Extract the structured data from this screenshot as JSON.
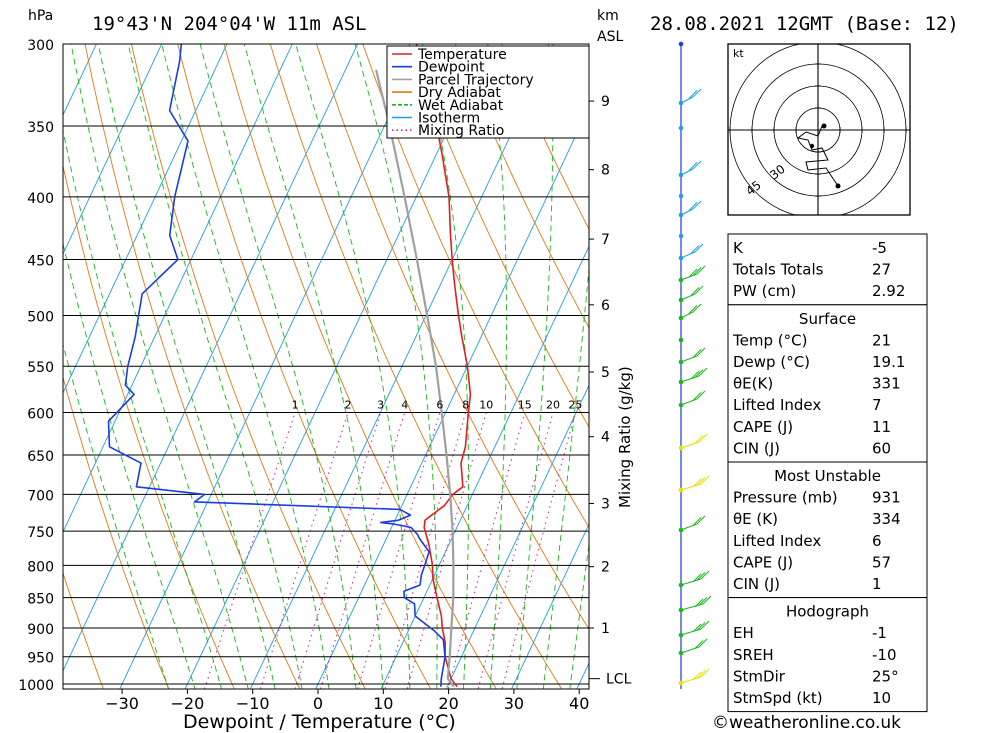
{
  "header": {
    "pressure_unit": "hPa",
    "location": "19°43'N  204°04'W  11m  ASL",
    "height_unit": "km",
    "height_ref": "ASL",
    "datetime": "28.08.2021  12GMT  (Base: 12)"
  },
  "footer": {
    "credit": "©weatheronline.co.uk"
  },
  "chart_data": {
    "type": "line",
    "subtype": "skew-T log-P sounding",
    "xlabel": "Dewpoint / Temperature (°C)",
    "x_ticks": [
      -30,
      -20,
      -10,
      0,
      10,
      20,
      30,
      40
    ],
    "xlim": [
      -40,
      40
    ],
    "ylabel": "hPa",
    "y_scale": "log",
    "y_ticks": [
      300,
      350,
      400,
      450,
      500,
      550,
      600,
      650,
      700,
      750,
      800,
      850,
      900,
      950,
      1000
    ],
    "ylim": [
      1010,
      300
    ],
    "height_axis_label": "km ASL",
    "height_ticks": [
      {
        "km": "1",
        "p": 900
      },
      {
        "km": "2",
        "p": 802
      },
      {
        "km": "3",
        "p": 712
      },
      {
        "km": "4",
        "p": 628
      },
      {
        "km": "5",
        "p": 556
      },
      {
        "km": "6",
        "p": 490
      },
      {
        "km": "7",
        "p": 433
      },
      {
        "km": "8",
        "p": 380
      },
      {
        "km": "9",
        "p": 334
      }
    ],
    "lcl_label": "LCL",
    "lcl_pressure": 990,
    "mixing_ratio_label": "Mixing Ratio (g/kg)",
    "mixing_ratio_ticks": [
      "1",
      "2",
      "3",
      "4",
      "6",
      "8",
      "10",
      "15",
      "20",
      "25"
    ],
    "mixing_ratio_values": [
      1,
      2,
      3,
      4,
      6,
      8,
      10,
      15,
      20,
      25
    ],
    "legend": [
      {
        "name": "Temperature",
        "color": "#e02020",
        "style": "solid"
      },
      {
        "name": "Dewpoint",
        "color": "#1a3de0",
        "style": "solid"
      },
      {
        "name": "Parcel Trajectory",
        "color": "#a0a0a0",
        "style": "solid"
      },
      {
        "name": "Dry Adiabat",
        "color": "#e07a10",
        "style": "solid"
      },
      {
        "name": "Wet Adiabat",
        "color": "#18b818",
        "style": "dashed"
      },
      {
        "name": "Isotherm",
        "color": "#1ea0e8",
        "style": "solid"
      },
      {
        "name": "Mixing Ratio",
        "color": "#d0208a",
        "style": "dotted"
      }
    ],
    "series": [
      {
        "name": "Temperature",
        "points": [
          [
            1005,
            21.5
          ],
          [
            990,
            20
          ],
          [
            950,
            17.5
          ],
          [
            925,
            16.5
          ],
          [
            900,
            15
          ],
          [
            880,
            14
          ],
          [
            850,
            12
          ],
          [
            820,
            10
          ],
          [
            800,
            9
          ],
          [
            770,
            7
          ],
          [
            745,
            5
          ],
          [
            735,
            4.6
          ],
          [
            725,
            5.5
          ],
          [
            715,
            6.5
          ],
          [
            700,
            7
          ],
          [
            690,
            8
          ],
          [
            660,
            6
          ],
          [
            640,
            5.5
          ],
          [
            610,
            4
          ],
          [
            580,
            2.5
          ],
          [
            550,
            0
          ],
          [
            520,
            -3
          ],
          [
            500,
            -5
          ],
          [
            470,
            -8
          ],
          [
            450,
            -10
          ],
          [
            430,
            -12
          ],
          [
            400,
            -15
          ],
          [
            370,
            -19
          ],
          [
            350,
            -22
          ],
          [
            320,
            -27
          ],
          [
            300,
            -31
          ]
        ]
      },
      {
        "name": "Dewpoint",
        "points": [
          [
            1005,
            19
          ],
          [
            990,
            18.5
          ],
          [
            950,
            17.5
          ],
          [
            930,
            16.5
          ],
          [
            920,
            16
          ],
          [
            905,
            14
          ],
          [
            880,
            10
          ],
          [
            860,
            9
          ],
          [
            850,
            7
          ],
          [
            840,
            6.5
          ],
          [
            830,
            8.5
          ],
          [
            815,
            8
          ],
          [
            800,
            7.8
          ],
          [
            780,
            7.5
          ],
          [
            760,
            5
          ],
          [
            755,
            4.5
          ],
          [
            745,
            3
          ],
          [
            740,
            0
          ],
          [
            738,
            -2
          ],
          [
            735,
            0.5
          ],
          [
            728,
            2
          ],
          [
            720,
            0
          ],
          [
            710,
            -32
          ],
          [
            700,
            -31
          ],
          [
            690,
            -42
          ],
          [
            660,
            -43
          ],
          [
            640,
            -49
          ],
          [
            610,
            -51
          ],
          [
            580,
            -49
          ],
          [
            570,
            -51
          ],
          [
            550,
            -52
          ],
          [
            520,
            -53
          ],
          [
            500,
            -54
          ],
          [
            480,
            -55
          ],
          [
            450,
            -52
          ],
          [
            430,
            -55
          ],
          [
            400,
            -57
          ],
          [
            360,
            -59
          ],
          [
            340,
            -64
          ],
          [
            310,
            -66
          ],
          [
            300,
            -67
          ]
        ]
      },
      {
        "name": "Parcel Trajectory",
        "points": [
          [
            1005,
            21
          ],
          [
            990,
            19.5
          ],
          [
            950,
            18.2
          ],
          [
            900,
            16.4
          ],
          [
            850,
            14.5
          ],
          [
            800,
            12.2
          ],
          [
            750,
            9.6
          ],
          [
            700,
            6.6
          ],
          [
            650,
            3.2
          ],
          [
            600,
            -0.6
          ],
          [
            550,
            -4.8
          ],
          [
            500,
            -9.8
          ],
          [
            450,
            -15.4
          ],
          [
            400,
            -21.8
          ],
          [
            350,
            -29.2
          ],
          [
            315,
            -35.3
          ]
        ]
      }
    ],
    "wind_profile_colors": [
      "#18b818",
      "#1ea0e8",
      "#e8e000"
    ]
  },
  "hodograph": {
    "unit_label": "kt",
    "ring_labels": [
      "30",
      "45"
    ]
  },
  "indices": {
    "top": [
      {
        "label": "K",
        "value": "-5"
      },
      {
        "label": "Totals Totals",
        "value": "27"
      },
      {
        "label": "PW (cm)",
        "value": "2.92"
      }
    ],
    "surface": {
      "title": "Surface",
      "rows": [
        {
          "label": "Temp (°C)",
          "value": "21"
        },
        {
          "label": "Dewp (°C)",
          "value": "19.1"
        },
        {
          "label": "θE(K)",
          "value": "331"
        },
        {
          "label": "Lifted Index",
          "value": "7"
        },
        {
          "label": "CAPE (J)",
          "value": "11"
        },
        {
          "label": "CIN (J)",
          "value": "60"
        }
      ]
    },
    "most_unstable": {
      "title": "Most Unstable",
      "rows": [
        {
          "label": "Pressure (mb)",
          "value": "931"
        },
        {
          "label": "θE (K)",
          "value": "334"
        },
        {
          "label": "Lifted Index",
          "value": "6"
        },
        {
          "label": "CAPE (J)",
          "value": "57"
        },
        {
          "label": "CIN (J)",
          "value": "1"
        }
      ]
    },
    "hodograph_box": {
      "title": "Hodograph",
      "rows": [
        {
          "label": "EH",
          "value": "-1"
        },
        {
          "label": "SREH",
          "value": "-10"
        },
        {
          "label": "StmDir",
          "value": "25°"
        },
        {
          "label": "StmSpd (kt)",
          "value": "10"
        }
      ]
    }
  }
}
